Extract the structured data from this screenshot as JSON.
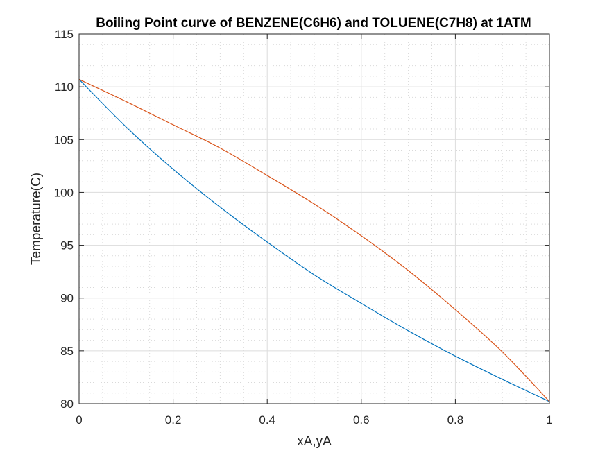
{
  "chart_data": {
    "type": "line",
    "title": "Boiling Point curve of BENZENE(C6H6) and TOLUENE(C7H8) at 1ATM",
    "xlabel": "xA,yA",
    "ylabel": "Temperature(C)",
    "xlim": [
      0,
      1
    ],
    "ylim": [
      80,
      115
    ],
    "xticks": [
      0,
      0.2,
      0.4,
      0.6,
      0.8,
      1
    ],
    "yticks": [
      80,
      85,
      90,
      95,
      100,
      105,
      110,
      115
    ],
    "xtick_labels": [
      "0",
      "0.2",
      "0.4",
      "0.6",
      "0.8",
      "1"
    ],
    "ytick_labels": [
      "80",
      "85",
      "90",
      "95",
      "100",
      "105",
      "110",
      "115"
    ],
    "grid": true,
    "minor_grid": true,
    "legend": "none",
    "series": [
      {
        "color": "#0072BD",
        "x": [
          0,
          0.1,
          0.2,
          0.3,
          0.4,
          0.5,
          0.6,
          0.7,
          0.8,
          0.9,
          1.0
        ],
        "y": [
          110.7,
          106.2,
          102.2,
          98.6,
          95.3,
          92.2,
          89.5,
          86.9,
          84.5,
          82.3,
          80.2
        ]
      },
      {
        "color": "#D95319",
        "x": [
          0,
          0.1,
          0.2,
          0.3,
          0.4,
          0.5,
          0.6,
          0.7,
          0.8,
          0.9,
          1.0
        ],
        "y": [
          110.7,
          108.6,
          106.4,
          104.2,
          101.6,
          98.9,
          95.9,
          92.6,
          88.9,
          84.9,
          80.2
        ]
      }
    ]
  }
}
